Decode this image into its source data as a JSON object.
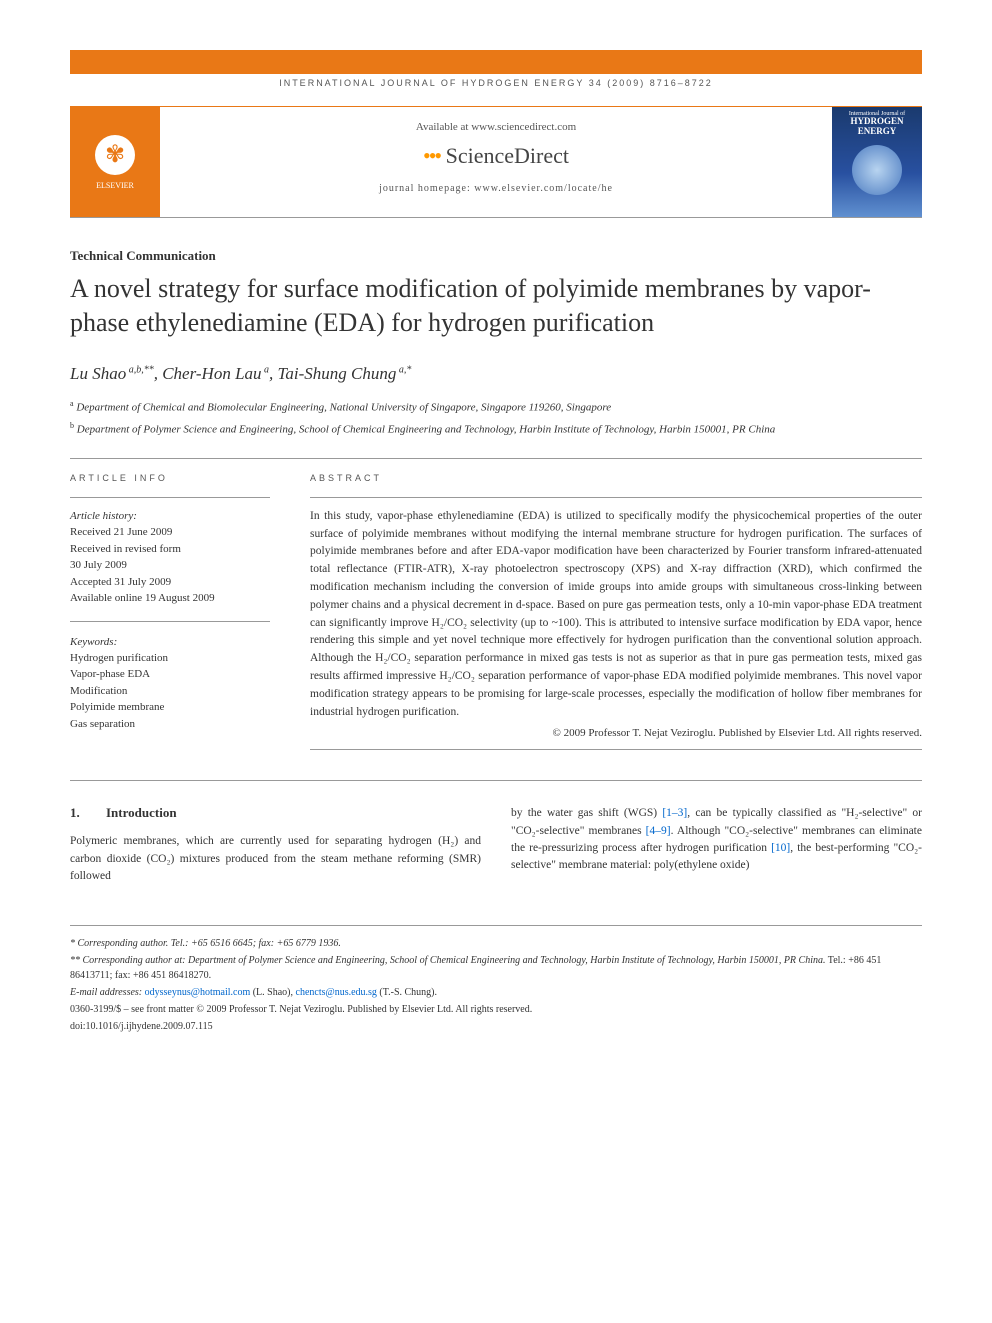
{
  "citation": "INTERNATIONAL JOURNAL OF HYDROGEN ENERGY 34 (2009) 8716–8722",
  "banner": {
    "publisher": "ELSEVIER",
    "available": "Available at www.sciencedirect.com",
    "sd": "ScienceDirect",
    "homepage": "journal homepage: www.elsevier.com/locate/he",
    "journal_title": "HYDROGEN ENERGY"
  },
  "subhead": "Technical Communication",
  "title": "A novel strategy for surface modification of polyimide membranes by vapor-phase ethylenediamine (EDA) for hydrogen purification",
  "authors_html": "Lu Shao<sup> a,b,**</sup>, Cher-Hon Lau<sup> a</sup>, Tai-Shung Chung<sup> a,*</sup>",
  "affils": [
    {
      "sup": "a",
      "text": "Department of Chemical and Biomolecular Engineering, National University of Singapore, Singapore 119260, Singapore"
    },
    {
      "sup": "b",
      "text": "Department of Polymer Science and Engineering, School of Chemical Engineering and Technology, Harbin Institute of Technology, Harbin 150001, PR China"
    }
  ],
  "info_label": "ARTICLE INFO",
  "abs_label": "ABSTRACT",
  "history": {
    "label": "Article history:",
    "lines": [
      "Received 21 June 2009",
      "Received in revised form",
      "30 July 2009",
      "Accepted 31 July 2009",
      "Available online 19 August 2009"
    ]
  },
  "keywords": {
    "label": "Keywords:",
    "items": [
      "Hydrogen purification",
      "Vapor-phase EDA",
      "Modification",
      "Polyimide membrane",
      "Gas separation"
    ]
  },
  "abstract": "In this study, vapor-phase ethylenediamine (EDA) is utilized to specifically modify the physicochemical properties of the outer surface of polyimide membranes without modifying the internal membrane structure for hydrogen purification. The surfaces of polyimide membranes before and after EDA-vapor modification have been characterized by Fourier transform infrared-attenuated total reflectance (FTIR-ATR), X-ray photoelectron spectroscopy (XPS) and X-ray diffraction (XRD), which confirmed the modification mechanism including the conversion of imide groups into amide groups with simultaneous cross-linking between polymer chains and a physical decrement in d-space. Based on pure gas permeation tests, only a 10-min vapor-phase EDA treatment can significantly improve H₂/CO₂ selectivity (up to ~100). This is attributed to intensive surface modification by EDA vapor, hence rendering this simple and yet novel technique more effectively for hydrogen purification than the conventional solution approach. Although the H₂/CO₂ separation performance in mixed gas tests is not as superior as that in pure gas permeation tests, mixed gas results affirmed impressive H₂/CO₂ separation performance of vapor-phase EDA modified polyimide membranes. This novel vapor modification strategy appears to be promising for large-scale processes, especially the modification of hollow fiber membranes for industrial hydrogen purification.",
  "copyright": "© 2009 Professor T. Nejat Veziroglu. Published by Elsevier Ltd. All rights reserved.",
  "section1": {
    "num": "1.",
    "title": "Introduction"
  },
  "col1": "Polymeric membranes, which are currently used for separating hydrogen (H₂) and carbon dioxide (CO₂) mixtures produced from the steam methane reforming (SMR) followed",
  "col2_pre": "by the water gas shift (WGS) ",
  "col2_l1": "[1–3]",
  "col2_mid1": ", can be typically classified as \"H₂-selective\" or \"CO₂-selective\" membranes ",
  "col2_l2": "[4–9]",
  "col2_mid2": ". Although \"CO₂-selective\" membranes can eliminate the re-pressurizing process after hydrogen purification ",
  "col2_l3": "[10]",
  "col2_post": ", the best-performing \"CO₂-selective\" membrane material: poly(ethylene oxide)",
  "footnotes": {
    "f1": "* Corresponding author. Tel.: +65 6516 6645; fax: +65 6779 1936.",
    "f2_pre": "** Corresponding author at: ",
    "f2_it": "Department of Polymer Science and Engineering, School of Chemical Engineering and Technology, Harbin Institute of Technology, Harbin 150001, PR China.",
    "f2_post": " Tel.: +86 451 86413711; fax: +86 451 86418270.",
    "f3_pre": "E-mail addresses: ",
    "email1": "odysseynus@hotmail.com",
    "f3_mid": " (L. Shao), ",
    "email2": "chencts@nus.edu.sg",
    "f3_post": " (T.-S. Chung).",
    "f4": "0360-3199/$ – see front matter © 2009 Professor T. Nejat Veziroglu. Published by Elsevier Ltd. All rights reserved.",
    "f5": "doi:10.1016/j.ijhydene.2009.07.115"
  }
}
